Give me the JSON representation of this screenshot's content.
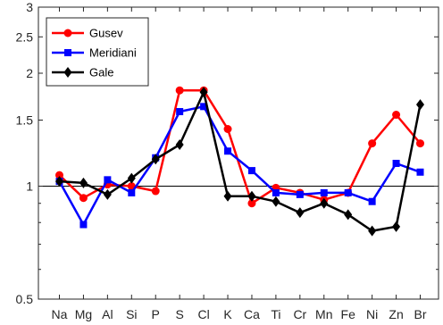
{
  "chart_data": {
    "type": "line",
    "title": "",
    "xlabel": "",
    "ylabel": "",
    "yscale": "log",
    "ylim": [
      0.5,
      3
    ],
    "yticks": [
      0.5,
      1,
      1.5,
      2,
      2.5,
      3
    ],
    "ytick_labels": [
      "0.5",
      "1",
      "1.5",
      "2",
      "2.5",
      "3"
    ],
    "reference_line": 1,
    "categories": [
      "Na",
      "Mg",
      "Al",
      "Si",
      "P",
      "S",
      "Cl",
      "K",
      "Ca",
      "Ti",
      "Cr",
      "Mn",
      "Fe",
      "Ni",
      "Zn",
      "Br"
    ],
    "legend_position": "top-left",
    "series": [
      {
        "name": "Gusev",
        "color": "#ff0000",
        "marker": "circle",
        "values": [
          1.07,
          0.93,
          1.01,
          1.0,
          0.97,
          1.8,
          1.8,
          1.42,
          0.9,
          0.99,
          0.96,
          0.92,
          0.96,
          1.3,
          1.55,
          1.3
        ]
      },
      {
        "name": "Meridiani",
        "color": "#0000ff",
        "marker": "square",
        "values": [
          1.03,
          0.79,
          1.04,
          0.96,
          1.19,
          1.58,
          1.63,
          1.24,
          1.1,
          0.96,
          0.95,
          0.96,
          0.96,
          0.91,
          1.15,
          1.09
        ]
      },
      {
        "name": "Gale",
        "color": "#000000",
        "marker": "diamond",
        "values": [
          1.03,
          1.02,
          0.95,
          1.05,
          1.18,
          1.29,
          1.78,
          0.94,
          0.94,
          0.91,
          0.85,
          0.9,
          0.84,
          0.76,
          0.78,
          1.65
        ]
      }
    ]
  }
}
